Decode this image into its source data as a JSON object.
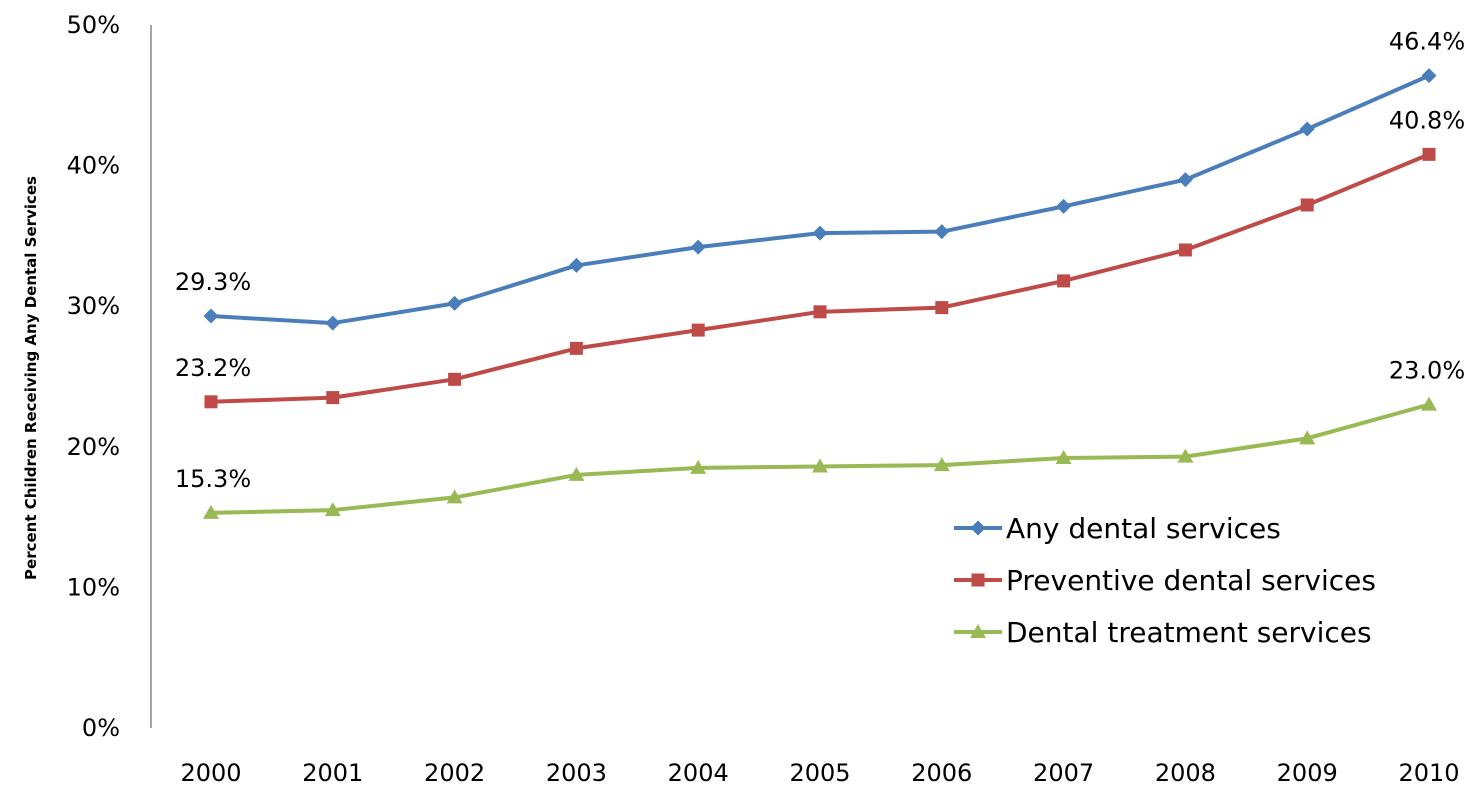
{
  "chart_data": {
    "type": "line",
    "title": "",
    "xlabel": "",
    "ylabel": "Percent Children Receiving Any Dental Services",
    "categories": [
      "2000",
      "2001",
      "2002",
      "2003",
      "2004",
      "2005",
      "2006",
      "2007",
      "2008",
      "2009",
      "2010"
    ],
    "ylim": [
      0,
      50
    ],
    "yticks": [
      0,
      10,
      20,
      30,
      40,
      50
    ],
    "ytick_labels": [
      "0%",
      "10%",
      "20%",
      "30%",
      "40%",
      "50%"
    ],
    "grid": false,
    "legend_position": "lower-right",
    "series": [
      {
        "name": "Any dental services",
        "color": "#4a7ebb",
        "marker": "diamond",
        "values": [
          29.3,
          28.8,
          30.2,
          32.9,
          34.2,
          35.2,
          35.3,
          37.1,
          39.0,
          42.6,
          46.4
        ],
        "labels": [
          {
            "index": 0,
            "text": "29.3%"
          },
          {
            "index": 10,
            "text": "46.4%"
          }
        ]
      },
      {
        "name": "Preventive dental services",
        "color": "#be4b48",
        "marker": "square",
        "values": [
          23.2,
          23.5,
          24.8,
          27.0,
          28.3,
          29.6,
          29.9,
          31.8,
          34.0,
          37.2,
          40.8
        ],
        "labels": [
          {
            "index": 0,
            "text": "23.2%"
          },
          {
            "index": 10,
            "text": "40.8%"
          }
        ]
      },
      {
        "name": "Dental treatment services",
        "color": "#98b954",
        "marker": "triangle",
        "values": [
          15.3,
          15.5,
          16.4,
          18.0,
          18.5,
          18.6,
          18.7,
          19.2,
          19.3,
          20.6,
          23.0
        ],
        "labels": [
          {
            "index": 0,
            "text": "15.3%"
          },
          {
            "index": 10,
            "text": "23.0%"
          }
        ]
      }
    ]
  }
}
